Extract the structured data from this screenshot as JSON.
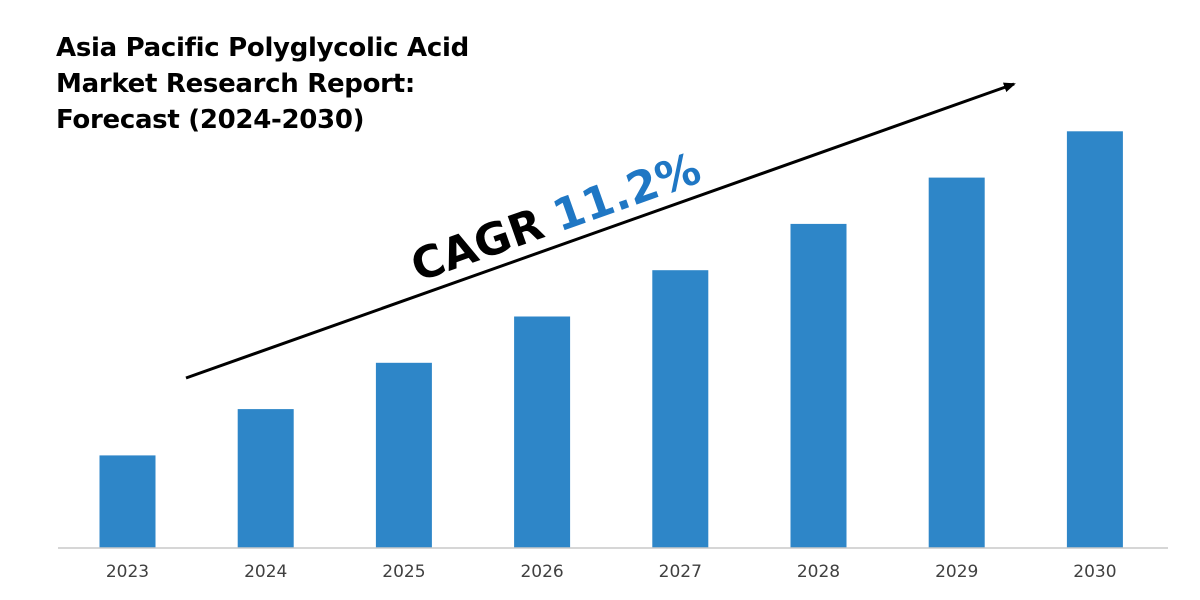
{
  "title": {
    "lines": [
      "Asia Pacific Polyglycolic Acid",
      "Market Research Report:",
      "Forecast (2024-2030)"
    ]
  },
  "annotation": {
    "prefix": "CAGR",
    "value": "11.2%",
    "prefix_color": "#000000",
    "value_color": "#1f77c4"
  },
  "colors": {
    "bar": "#2e86c8",
    "axis": "#c8c8c8",
    "arrow": "#000000"
  },
  "chart_data": {
    "type": "bar",
    "title": "Asia Pacific Polyglycolic Acid Market Research Report: Forecast (2024-2030)",
    "categories": [
      "2023",
      "2024",
      "2025",
      "2026",
      "2027",
      "2028",
      "2029",
      "2030"
    ],
    "values": [
      1.0,
      1.5,
      2.0,
      2.5,
      3.0,
      3.5,
      4.0,
      4.5
    ],
    "ylim": [
      0,
      4.6
    ],
    "xlabel": "",
    "ylabel": "",
    "grid": false,
    "legend": "none",
    "annotations": [
      "CAGR 11.2%"
    ]
  }
}
